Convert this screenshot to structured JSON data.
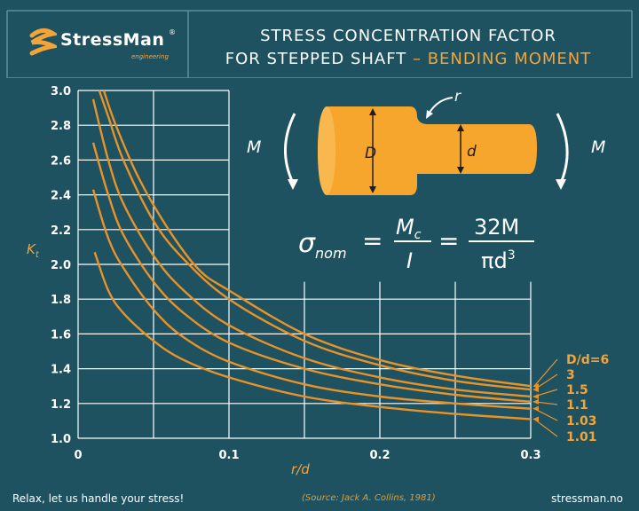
{
  "brand": {
    "name": "StressMan",
    "registered": "®",
    "sub": "engineering"
  },
  "header": {
    "title_line1": "STRESS CONCENTRATION FACTOR",
    "title_line2_main": "FOR STEPPED SHAFT",
    "title_line2_dash": " – ",
    "title_line2_highlight": "BENDING MOMENT"
  },
  "diagram": {
    "moment_label": "M",
    "radius_label": "r",
    "big_diameter_label": "D",
    "small_diameter_label": "d",
    "formula_lhs": "σ",
    "formula_lhs_sub": "nom",
    "formula_num1": "M",
    "formula_num1_sub": "c",
    "formula_den1": "I",
    "formula_num2": "32M",
    "formula_den2": "πd",
    "formula_den2_sup": "3",
    "equals": "="
  },
  "footer": {
    "slogan": "Relax, let us handle your  stress!",
    "source": "(Source: Jack A. Collins, 1981)",
    "site": "stressman.no"
  },
  "colors": {
    "background": "#1e5260",
    "grid": "#ffffff",
    "curve": "#e8932a",
    "accent": "#f2a33a",
    "shaft": "#f7a62d"
  },
  "chart_data": {
    "type": "line",
    "title": "",
    "xlabel": "r/d",
    "ylabel": "K",
    "ylabel_sub": "t",
    "xlim": [
      0,
      0.3
    ],
    "ylim": [
      1.0,
      3.0
    ],
    "x_ticks": [
      "0",
      "0.1",
      "0.2",
      "0.3"
    ],
    "y_ticks": [
      "1.0",
      "1.2",
      "1.4",
      "1.6",
      "1.8",
      "2.0",
      "2.2",
      "2.4",
      "2.6",
      "2.8",
      "3.0"
    ],
    "grid": true,
    "legend_placement": "right",
    "series": [
      {
        "name": "D/d=6",
        "x": [
          0.017,
          0.025,
          0.04,
          0.06,
          0.08,
          0.1,
          0.15,
          0.2,
          0.25,
          0.3
        ],
        "y": [
          3.0,
          2.8,
          2.5,
          2.2,
          1.97,
          1.85,
          1.6,
          1.45,
          1.36,
          1.3
        ]
      },
      {
        "name": "3",
        "x": [
          0.014,
          0.02,
          0.03,
          0.05,
          0.07,
          0.1,
          0.15,
          0.2,
          0.25,
          0.3
        ],
        "y": [
          3.0,
          2.85,
          2.6,
          2.25,
          2.03,
          1.8,
          1.56,
          1.42,
          1.33,
          1.28
        ]
      },
      {
        "name": "1.5",
        "x": [
          0.01,
          0.02,
          0.03,
          0.05,
          0.07,
          0.1,
          0.15,
          0.2,
          0.25,
          0.3
        ],
        "y": [
          2.95,
          2.6,
          2.35,
          2.05,
          1.85,
          1.65,
          1.46,
          1.35,
          1.28,
          1.24
        ]
      },
      {
        "name": "1.1",
        "x": [
          0.01,
          0.02,
          0.03,
          0.05,
          0.07,
          0.1,
          0.15,
          0.2,
          0.25,
          0.3
        ],
        "y": [
          2.7,
          2.4,
          2.17,
          1.9,
          1.72,
          1.55,
          1.4,
          1.31,
          1.25,
          1.21
        ]
      },
      {
        "name": "1.03",
        "x": [
          0.01,
          0.02,
          0.03,
          0.05,
          0.07,
          0.1,
          0.15,
          0.2,
          0.25,
          0.3
        ],
        "y": [
          2.43,
          2.15,
          1.98,
          1.74,
          1.58,
          1.44,
          1.31,
          1.24,
          1.2,
          1.17
        ]
      },
      {
        "name": "1.01",
        "x": [
          0.011,
          0.02,
          0.03,
          0.05,
          0.07,
          0.1,
          0.15,
          0.2,
          0.25,
          0.3
        ],
        "y": [
          2.07,
          1.85,
          1.72,
          1.56,
          1.45,
          1.35,
          1.24,
          1.18,
          1.14,
          1.11
        ]
      }
    ]
  }
}
